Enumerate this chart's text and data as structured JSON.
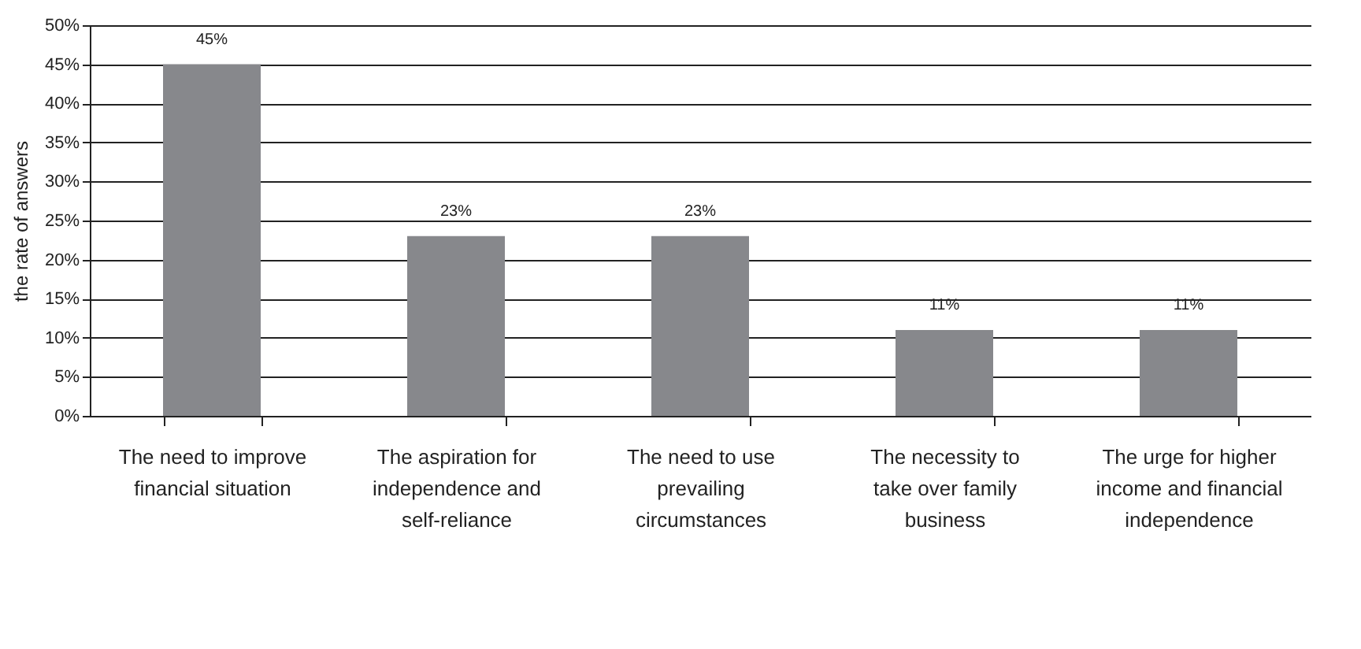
{
  "chart_data": {
    "type": "bar",
    "ylabel": "the rate of answers",
    "categories": [
      "The need to improve financial situation",
      "The aspiration for independence and self-reliance",
      "The need to use prevailing circumstances",
      "The necessity to take over family business",
      "The urge for higher income and financial independence"
    ],
    "values": [
      45,
      23,
      23,
      11,
      11
    ],
    "value_labels": [
      "45%",
      "23%",
      "23%",
      "11%",
      "11%"
    ],
    "color": "#87888c",
    "ylim": [
      0,
      50
    ],
    "yticks": [
      {
        "value": 0,
        "label": "0%"
      },
      {
        "value": 5,
        "label": "5%"
      },
      {
        "value": 10,
        "label": "10%"
      },
      {
        "value": 15,
        "label": "15%"
      },
      {
        "value": 20,
        "label": "20%"
      },
      {
        "value": 25,
        "label": "25%"
      },
      {
        "value": 30,
        "label": "30%"
      },
      {
        "value": 35,
        "label": "35%"
      },
      {
        "value": 40,
        "label": "40%"
      },
      {
        "value": 45,
        "label": "45%"
      },
      {
        "value": 50,
        "label": "50%"
      }
    ],
    "grid": "y"
  }
}
